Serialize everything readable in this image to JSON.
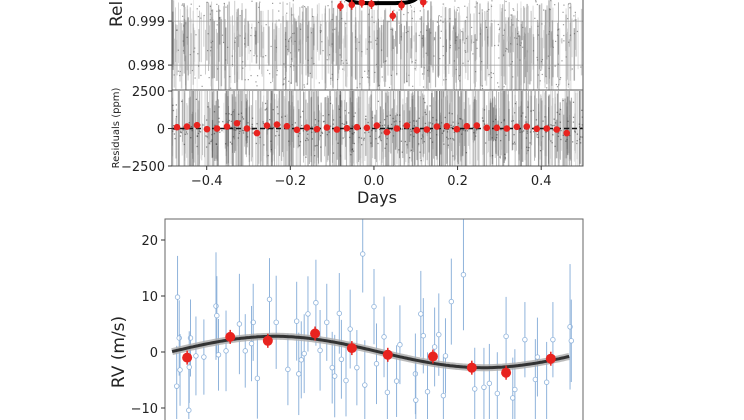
{
  "chart_data": [
    {
      "type": "scatter",
      "panel": "transit",
      "ylabel": "Relative flux",
      "yticks": [
        "0.999",
        "0.998"
      ],
      "ylim": [
        0.99757,
        0.99948
      ],
      "xlim": [
        -0.483,
        0.5
      ],
      "grid": true,
      "binned_points": {
        "color": "#e8231f",
        "x": [
          -0.08,
          -0.053,
          -0.029,
          -0.006,
          0.045,
          0.066,
          0.118
        ],
        "y": [
          0.99934,
          0.99937,
          0.99942,
          0.99939,
          0.99912,
          0.99936,
          0.99943
        ]
      },
      "model": {
        "color": "#000000",
        "depth_min": 0.99941,
        "t_ingress": -0.095,
        "t_egress": 0.13
      }
    },
    {
      "type": "scatter",
      "panel": "residuals",
      "ylabel": "Residuals (ppm)",
      "yticks": [
        "2500",
        "0",
        "−2500"
      ],
      "ylim": [
        -2500,
        2500
      ],
      "xlabel": "Days",
      "xticks": [
        "−0.4",
        "−0.2",
        "0.0",
        "0.2",
        "0.4"
      ],
      "xtick_values": [
        -0.4,
        -0.2,
        0.0,
        0.2,
        0.4
      ],
      "xlim": [
        -0.483,
        0.5
      ],
      "binned_points": {
        "color": "#e8231f",
        "x_start": -0.471,
        "x_step": 0.0239,
        "y": [
          88,
          131,
          219,
          -44,
          0,
          131,
          350,
          0,
          -307,
          197,
          263,
          153,
          -88,
          66,
          -44,
          66,
          -66,
          22,
          88,
          44,
          197,
          -241,
          0,
          197,
          -110,
          -66,
          131,
          153,
          -44,
          153,
          197,
          44,
          44,
          0,
          110,
          131,
          -22,
          0,
          -66,
          -307
        ]
      },
      "zero_line": "dashed"
    },
    {
      "type": "scatter",
      "panel": "rv",
      "ylabel": "RV (m/s)",
      "yticks": [
        "20",
        "10",
        "0",
        "−10"
      ],
      "ytick_values": [
        20,
        10,
        0,
        -10
      ],
      "ylim": [
        -12.2,
        23.9
      ],
      "xlim": [
        -0.5,
        0.5
      ],
      "data_points": {
        "color": "#8fb3db",
        "marker": "open-circle",
        "x": [
          -0.47,
          -0.466,
          -0.472,
          -0.464,
          -0.443,
          -0.439,
          -0.442,
          -0.426,
          -0.407,
          -0.378,
          -0.376,
          -0.372,
          -0.354,
          -0.322,
          -0.308,
          -0.289,
          -0.279,
          -0.293,
          -0.25,
          -0.234,
          -0.206,
          -0.185,
          -0.18,
          -0.174,
          -0.167,
          -0.158,
          -0.139,
          -0.129,
          -0.113,
          -0.1,
          -0.094,
          -0.083,
          -0.078,
          -0.067,
          -0.057,
          -0.041,
          -0.027,
          -0.022,
          0.0,
          0.006,
          0.024,
          0.032,
          0.054,
          0.062,
          0.099,
          0.1,
          0.112,
          0.118,
          0.128,
          0.145,
          0.155,
          0.166,
          0.171,
          0.185,
          0.214,
          0.241,
          0.263,
          0.276,
          0.295,
          0.316,
          0.332,
          0.337,
          0.361,
          0.386,
          0.391,
          0.413,
          0.428,
          0.469,
          0.472
        ],
        "y": [
          9.8,
          2.5,
          -6.1,
          -3.2,
          -10.4,
          2.5,
          -2.7,
          -0.7,
          -0.9,
          8.2,
          6.5,
          -0.5,
          0.2,
          5.0,
          0.2,
          5.3,
          -4.7,
          1.5,
          9.4,
          5.3,
          -3.1,
          5.5,
          -3.9,
          -1.4,
          -0.3,
          6.8,
          8.8,
          0.3,
          5.3,
          -2.8,
          -4.3,
          6.9,
          -1.3,
          -5.1,
          4.1,
          -2.8,
          17.5,
          -5.9,
          8.1,
          -2.1,
          2.7,
          -7.2,
          -5.2,
          1.3,
          -3.9,
          -8.6,
          6.8,
          2.9,
          -7.1,
          0.9,
          3.1,
          -7.8,
          -0.7,
          9.0,
          13.8,
          -6.6,
          -6.3,
          -5.6,
          -7.4,
          2.8,
          -8.2,
          -6.7,
          2.2,
          -4.9,
          -0.9,
          -5.4,
          2.2,
          4.5,
          2.0
        ],
        "err": [
          4.6,
          4.2,
          4.5,
          4.0,
          4.6,
          4.3,
          4.0,
          4.4,
          4.2,
          6.0,
          4.4,
          4.0,
          4.5,
          5.6,
          4.1,
          4.3,
          4.5,
          4.2,
          4.6,
          5.2,
          4.0,
          4.4,
          4.6,
          4.3,
          4.4,
          4.2,
          4.8,
          4.5,
          4.3,
          4.0,
          4.6,
          4.5,
          4.4,
          4.0,
          4.4,
          4.2,
          4.3,
          5.0,
          4.2,
          4.5,
          4.5,
          4.8,
          4.0,
          4.4,
          4.5,
          4.6,
          4.8,
          4.2,
          4.4,
          4.4,
          4.6,
          4.4,
          4.2,
          4.8,
          6.2,
          4.6,
          4.4,
          4.4,
          4.6,
          4.4,
          4.5,
          4.5,
          4.2,
          4.5,
          4.4,
          4.5,
          4.2,
          7.0,
          4.6
        ]
      },
      "binned_points": {
        "color": "#e8231f",
        "x": [
          -0.447,
          -0.344,
          -0.254,
          -0.141,
          -0.053,
          0.033,
          0.141,
          0.234,
          0.316,
          0.423
        ],
        "y": [
          -1.0,
          2.7,
          2.0,
          3.3,
          0.7,
          -0.5,
          -0.8,
          -2.8,
          -3.7,
          -1.2
        ]
      },
      "model": {
        "type": "sinusoid",
        "K": 2.8,
        "offset": 0.0,
        "peak_phase": -0.237,
        "period": 1.0,
        "color": "#333333"
      }
    }
  ]
}
